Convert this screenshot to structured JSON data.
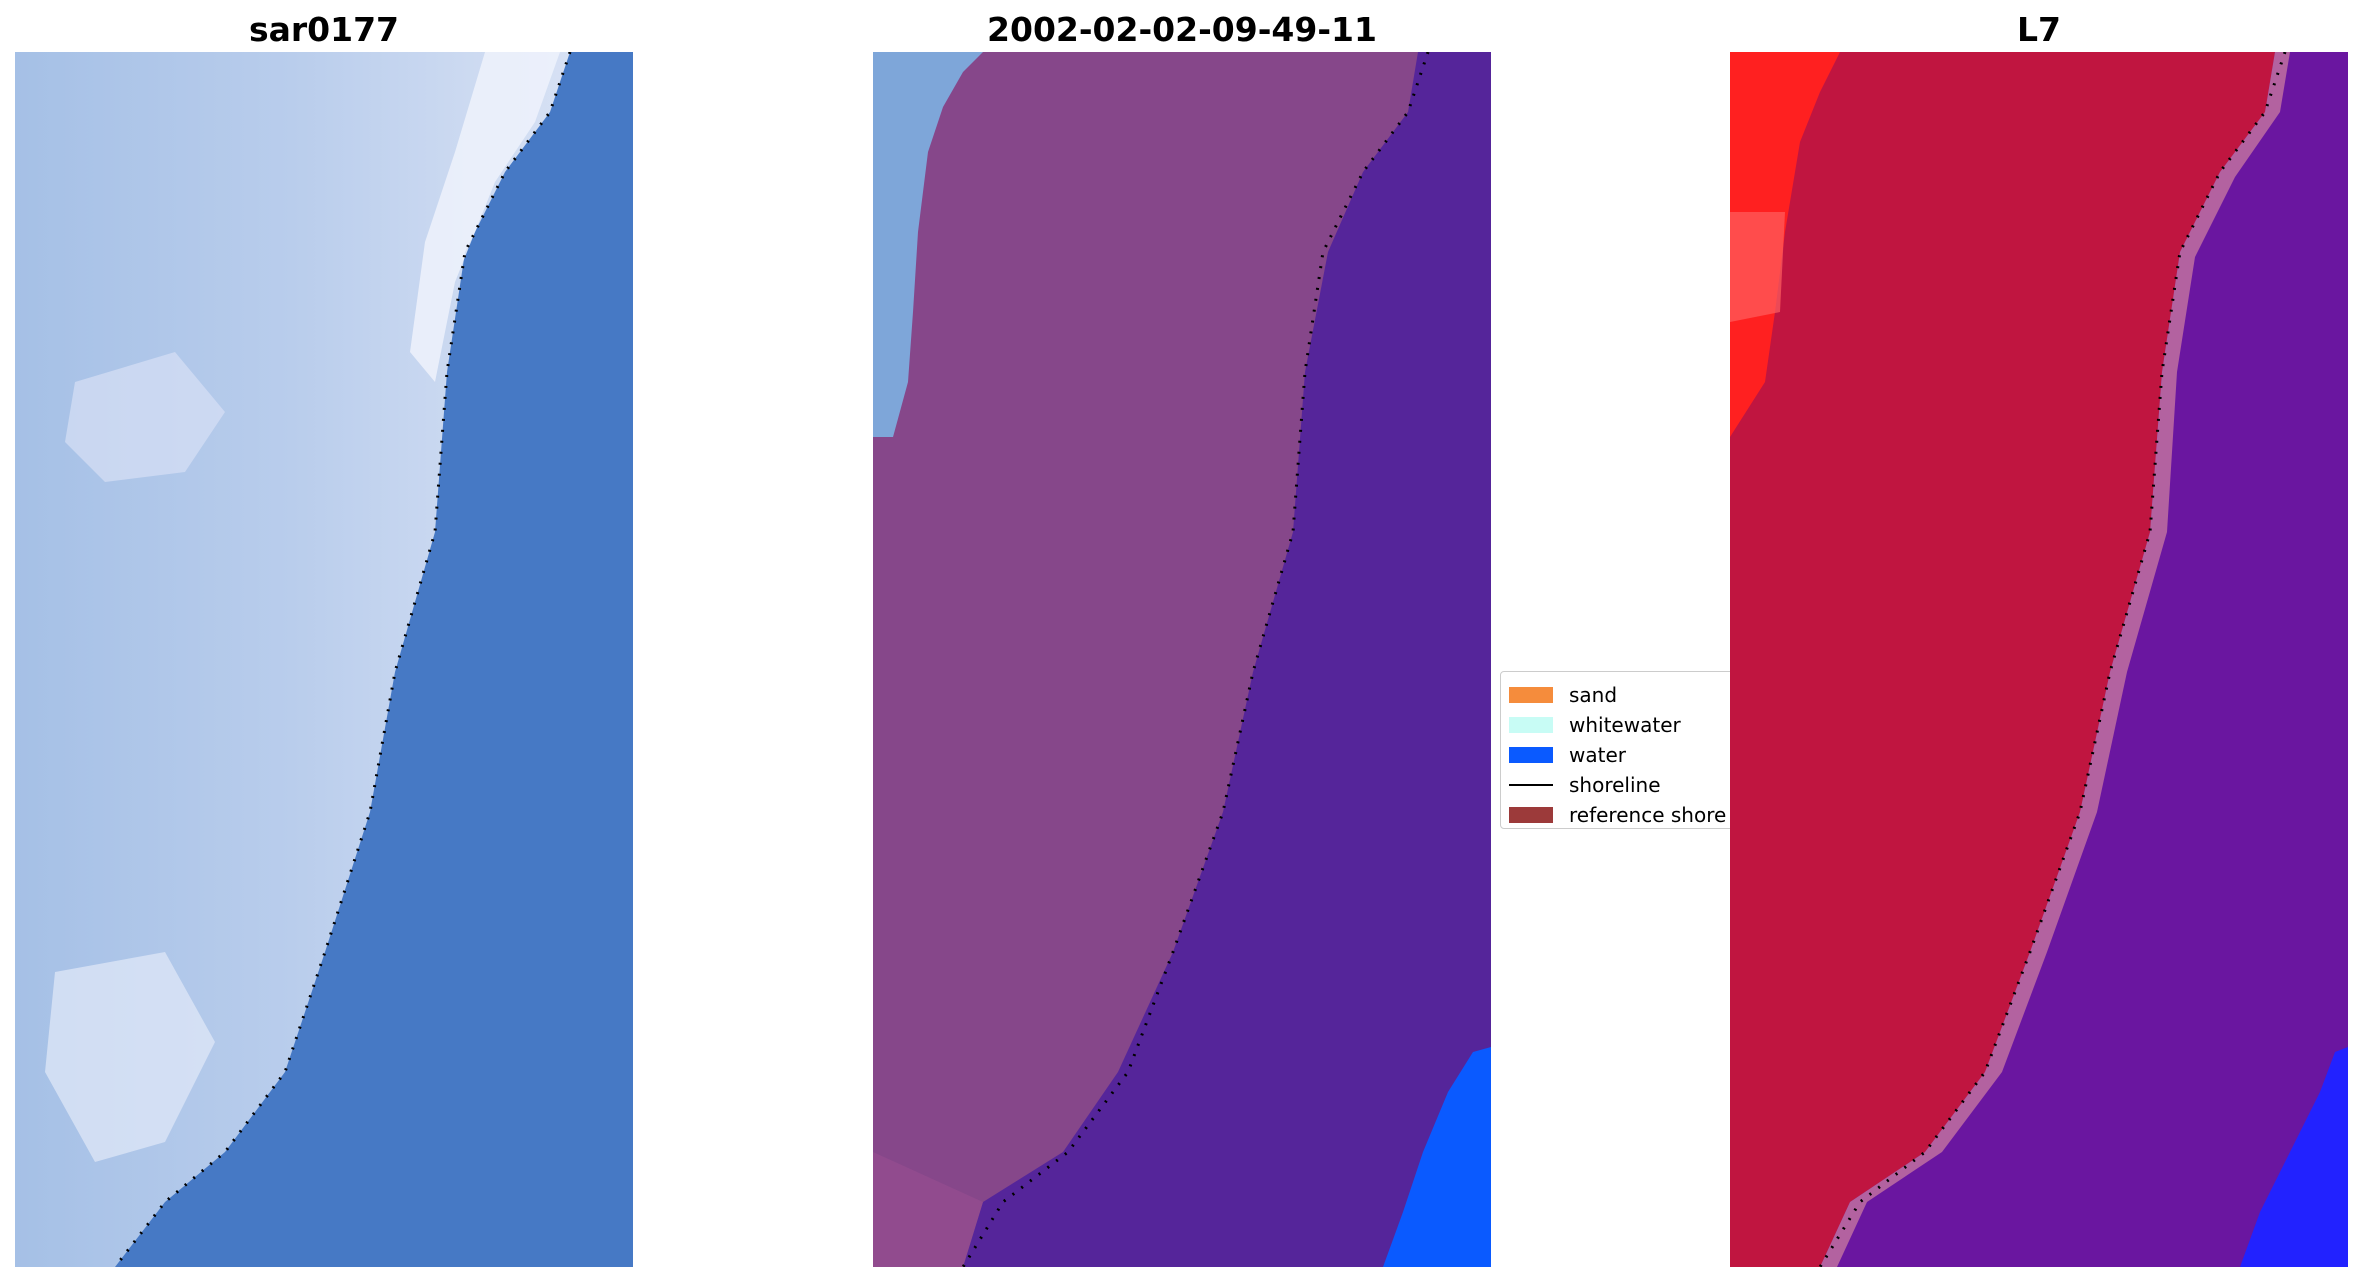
{
  "panels": [
    {
      "title": "sar0177"
    },
    {
      "title": "2002-02-02-09-49-11"
    },
    {
      "title": "L7"
    }
  ],
  "legend": {
    "items": [
      {
        "label": "sand",
        "color": "#f58c3c"
      },
      {
        "label": "whitewater",
        "color": "#c8fcf5"
      },
      {
        "label": "water",
        "color": "#0a5aff"
      },
      {
        "label": "shoreline",
        "color": "#000000"
      },
      {
        "label": "reference shore",
        "color": "#9c3a3a"
      }
    ]
  },
  "colors": {
    "sar_water": "#4679c5",
    "sar_land": "#8fb3e0",
    "sar_whitewater": "#dde5f7",
    "class_land": "#86478a",
    "class_water": "#55259a",
    "class_whitewater": "#7ea6d9",
    "class_water_corner": "#0a5aff",
    "l7_land": "#c01540",
    "l7_sea": "#6a16a0",
    "l7_bright": "#ff2020",
    "l7_water_corner": "#2222ff"
  }
}
